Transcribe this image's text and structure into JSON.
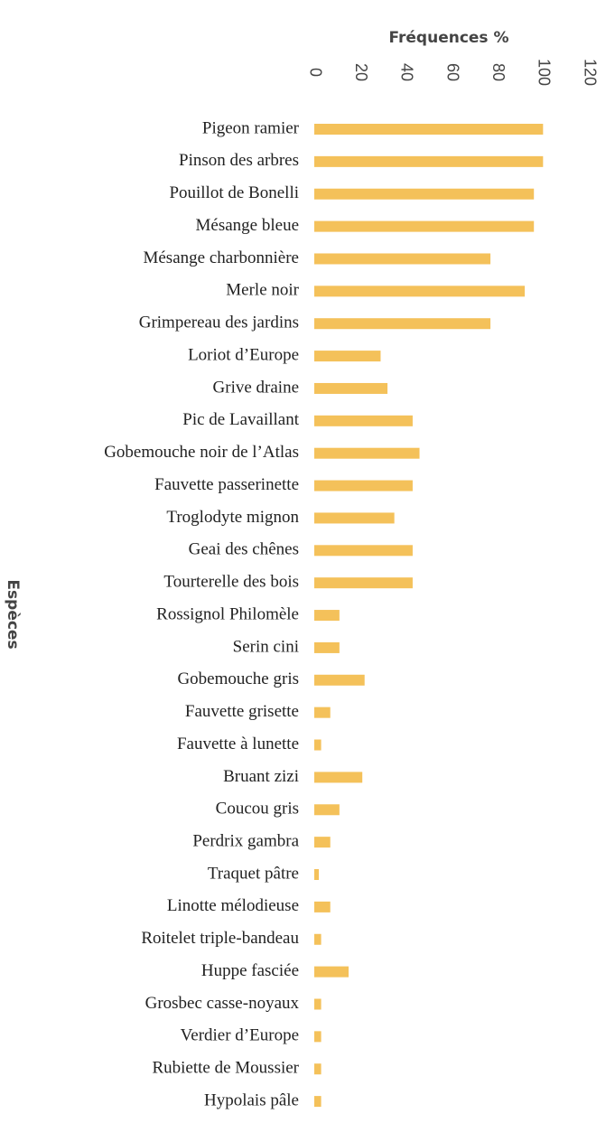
{
  "chart_data": {
    "type": "bar",
    "orientation": "horizontal",
    "x_label": "Fréquences %",
    "y_label": "Espèces",
    "categories": [
      "Pigeon ramier",
      "Pinson des arbres",
      "Pouillot de Bonelli",
      "Mésange bleue",
      "Mésange charbonnière",
      "Merle noir",
      "Grimpereau des jardins",
      "Loriot d’Europe",
      "Grive draine",
      "Pic de Lavaillant",
      "Gobemouche noir de l’Atlas",
      "Fauvette passerinette",
      "Troglodyte mignon",
      "Geai des chênes",
      "Tourterelle des bois",
      "Rossignol Philomèle",
      "Serin cini",
      "Gobemouche gris",
      "Fauvette grisette",
      "Fauvette à lunette",
      "Bruant zizi",
      "Coucou gris",
      "Perdrix gambra",
      "Traquet pâtre",
      "Linotte mélodieuse",
      "Roitelet triple-bandeau",
      "Huppe fasciée",
      "Grosbec casse-noyaux",
      "Verdier d’Europe",
      "Rubiette de Moussier",
      "Hypolais pâle"
    ],
    "values": [
      100,
      100,
      96,
      96,
      77,
      92,
      77,
      29,
      32,
      43,
      46,
      43,
      35,
      43,
      43,
      11,
      11,
      22,
      7,
      3,
      21,
      11,
      7,
      2,
      7,
      3,
      15,
      3,
      3,
      3,
      3
    ],
    "color": "#f4c15a",
    "xlim": [
      0,
      120
    ],
    "xticks": [
      0,
      20,
      40,
      60,
      80,
      100,
      120
    ],
    "grid": false
  }
}
